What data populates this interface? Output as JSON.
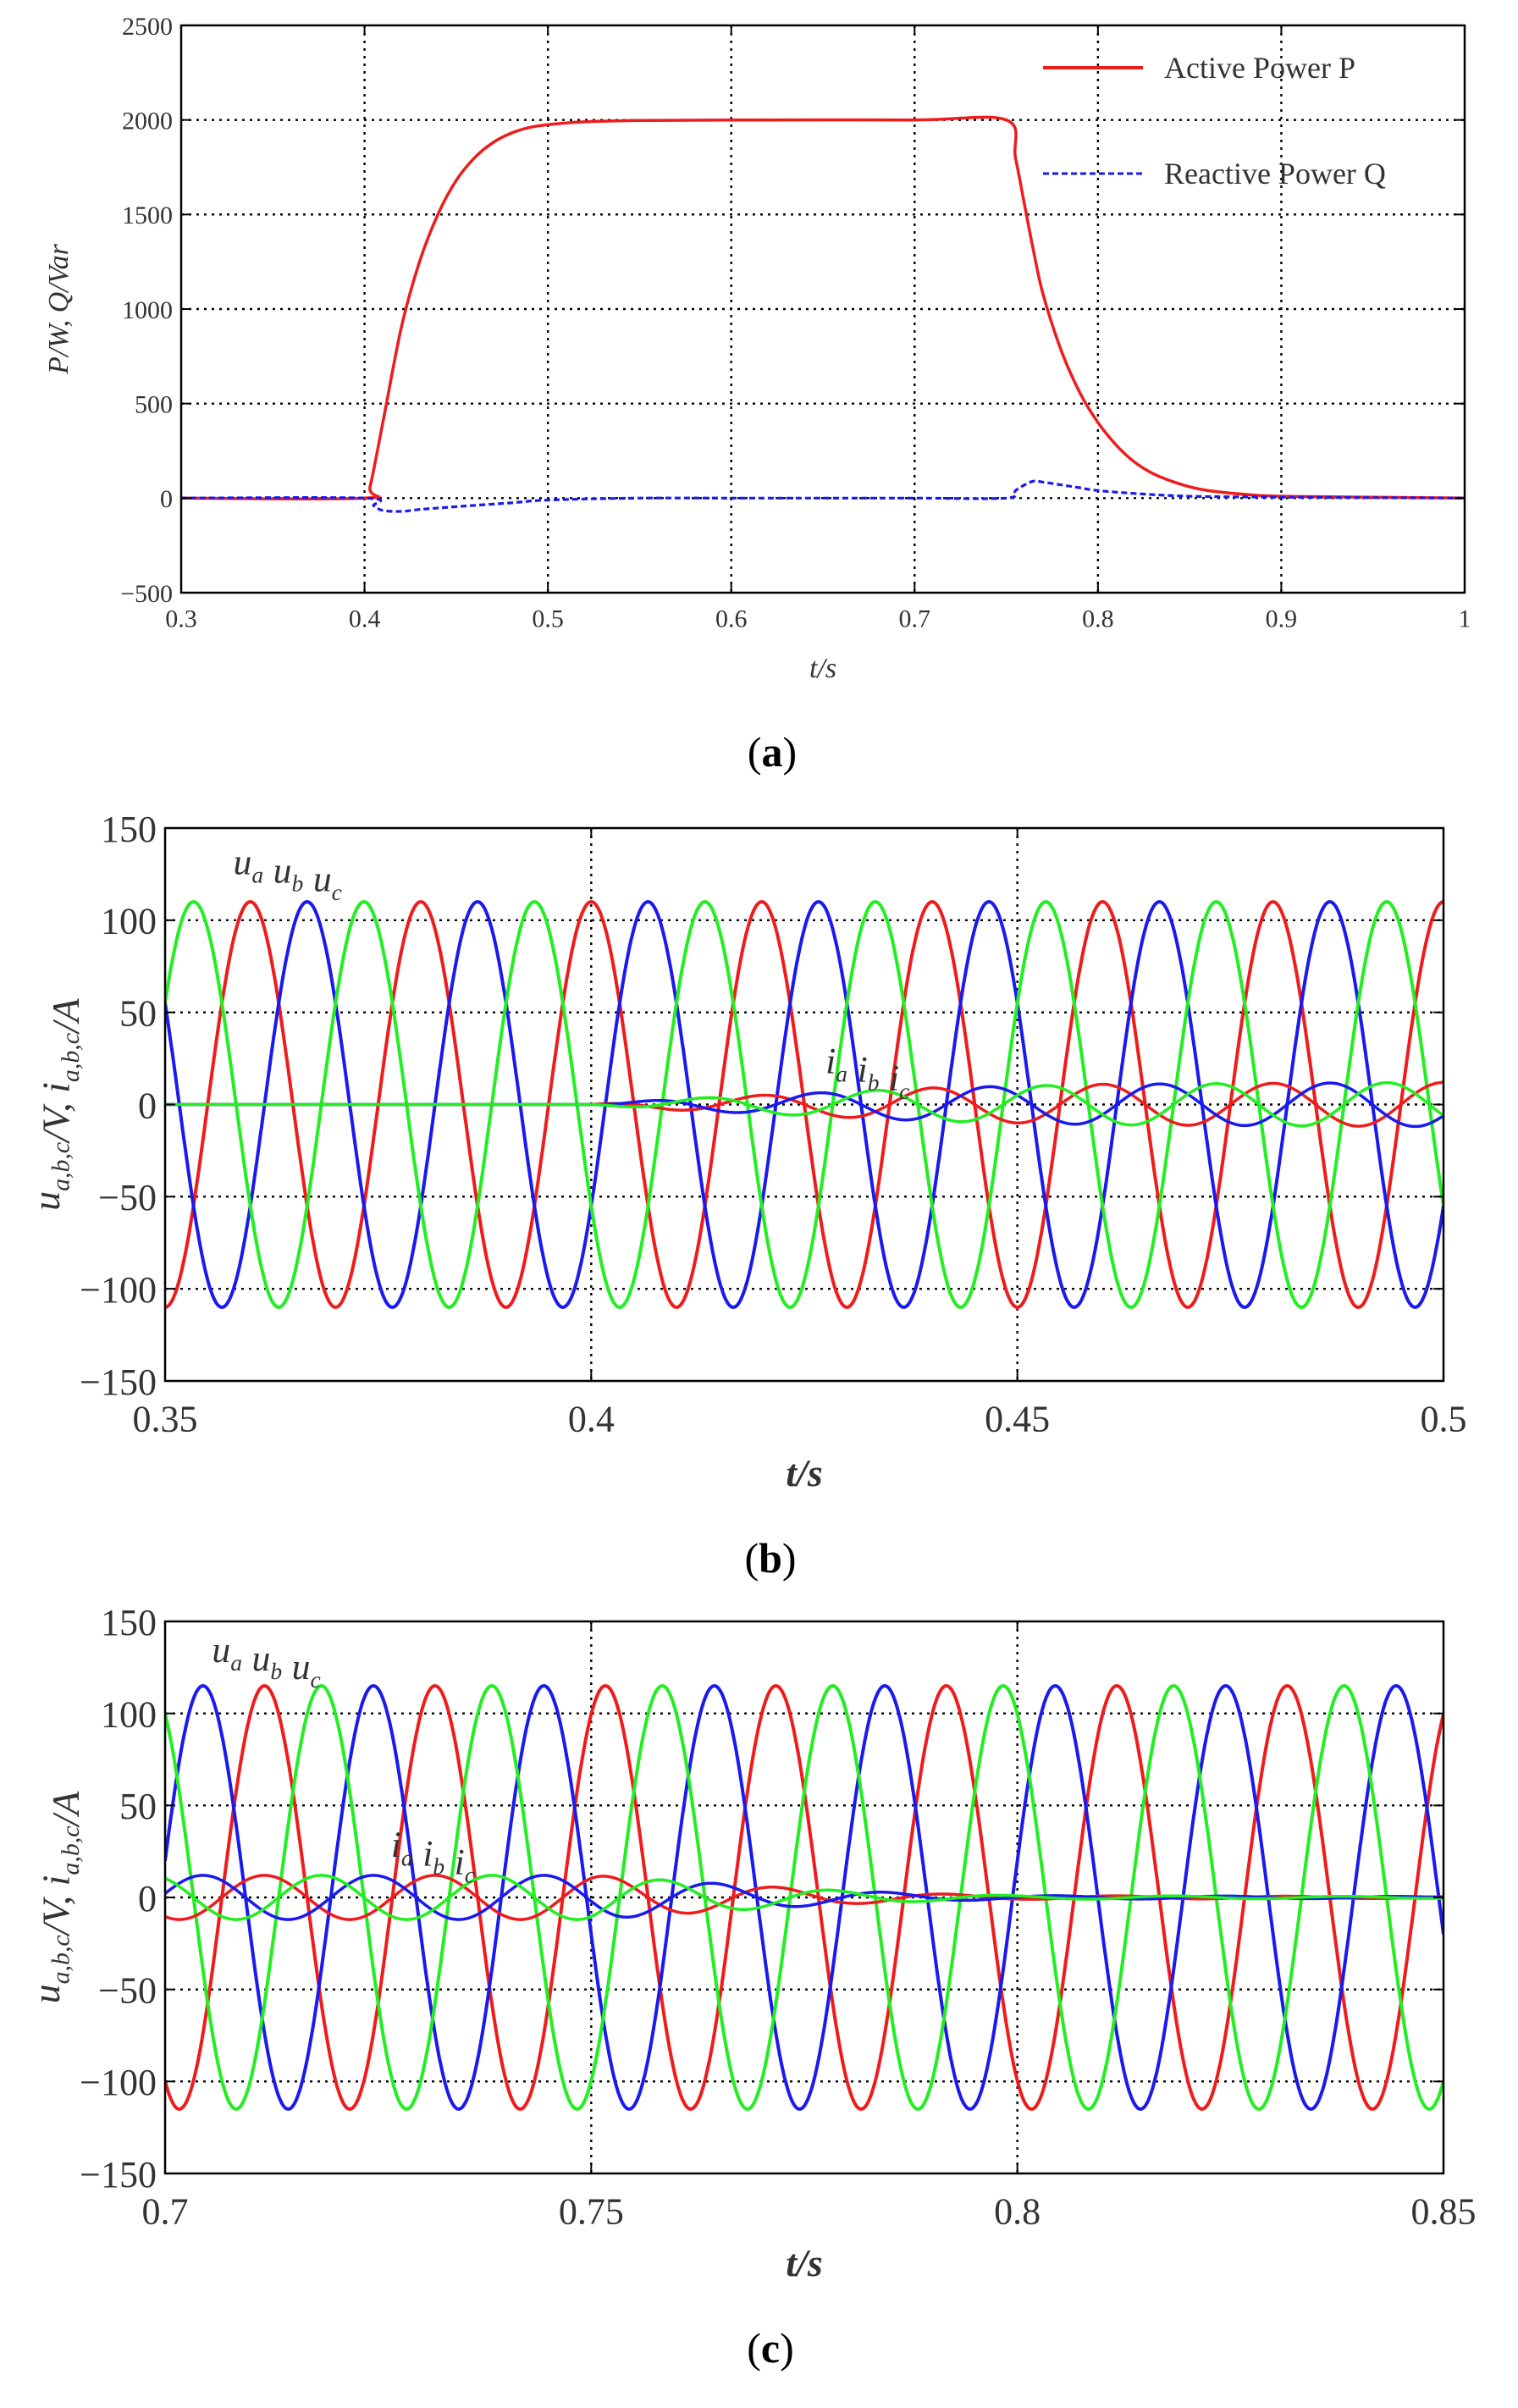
{
  "chart_data": [
    {
      "panel": "a",
      "type": "line",
      "caption_letter": "a",
      "xlabel": "t/s",
      "ylabel": "P/W,  Q/Var",
      "xlim": [
        0.3,
        1.0
      ],
      "ylim": [
        -500,
        2500
      ],
      "xticks": [
        0.3,
        0.4,
        0.5,
        0.6,
        0.7,
        0.8,
        0.9,
        1.0
      ],
      "xtick_labels": [
        "0.3",
        "0.4",
        "0.5",
        "0.6",
        "0.7",
        "0.8",
        "0.9",
        "1"
      ],
      "yticks": [
        -500,
        0,
        500,
        1000,
        1500,
        2000,
        2500
      ],
      "ytick_labels": [
        "−500",
        "0",
        "500",
        "1000",
        "1500",
        "2000",
        "2500"
      ],
      "grid": true,
      "legend_position": "top-right",
      "series": [
        {
          "name": "Active Power P",
          "color": "#ee1c1c",
          "style": "solid",
          "x": [
            0.3,
            0.4,
            0.403,
            0.41,
            0.42,
            0.43,
            0.44,
            0.45,
            0.46,
            0.47,
            0.48,
            0.49,
            0.5,
            0.52,
            0.55,
            0.6,
            0.7,
            0.75,
            0.755,
            0.76,
            0.765,
            0.77,
            0.78,
            0.79,
            0.8,
            0.81,
            0.82,
            0.83,
            0.84,
            0.85,
            0.86,
            0.88,
            0.9,
            0.95,
            1.0
          ],
          "y": [
            0,
            0,
            60,
            400,
            900,
            1250,
            1500,
            1680,
            1800,
            1880,
            1930,
            1960,
            1975,
            1990,
            1997,
            2000,
            2000,
            2000,
            1800,
            1550,
            1300,
            1080,
            780,
            560,
            400,
            280,
            190,
            130,
            90,
            60,
            40,
            20,
            10,
            5,
            0
          ]
        },
        {
          "name": "Reactive Power Q",
          "color": "#1a1aee",
          "style": "dashed",
          "x": [
            0.3,
            0.4,
            0.405,
            0.41,
            0.42,
            0.43,
            0.45,
            0.48,
            0.5,
            0.55,
            0.6,
            0.65,
            0.7,
            0.75,
            0.755,
            0.76,
            0.765,
            0.77,
            0.78,
            0.79,
            0.8,
            0.82,
            0.85,
            0.9,
            1.0
          ],
          "y": [
            0,
            0,
            -40,
            -65,
            -70,
            -60,
            -45,
            -25,
            -10,
            0,
            0,
            0,
            0,
            0,
            40,
            70,
            90,
            85,
            70,
            55,
            40,
            25,
            10,
            5,
            0
          ]
        }
      ]
    },
    {
      "panel": "b",
      "type": "line",
      "caption_letter": "b",
      "xlabel": "t/s",
      "ylabel": "u_{a,b,c}/V,  i_{a,b,c}/A",
      "xlim": [
        0.35,
        0.5
      ],
      "ylim": [
        -150,
        150
      ],
      "xticks": [
        0.35,
        0.4,
        0.45,
        0.5
      ],
      "xtick_labels": [
        "0.35",
        "0.4",
        "0.45",
        "0.5"
      ],
      "yticks": [
        -150,
        -100,
        -50,
        0,
        50,
        100,
        150
      ],
      "ytick_labels": [
        "−150",
        "−100",
        "−50",
        "0",
        "50",
        "100",
        "150"
      ],
      "grid": true,
      "annotations": [
        {
          "kind": "voltage",
          "text": [
            "u",
            "a",
            "u",
            "b",
            "u",
            "c"
          ],
          "x": 0.358,
          "y": 125
        },
        {
          "kind": "current",
          "text": [
            "i",
            "a",
            "i",
            "b",
            "i",
            "c"
          ],
          "x": 0.4275,
          "y": 17
        }
      ],
      "series": [
        {
          "name": "ua",
          "color": "#ee1c1c",
          "amplitude": 110,
          "frequency_hz": 50,
          "phase_deg": 90
        },
        {
          "name": "ub",
          "color": "#1a1aee",
          "amplitude": 110,
          "frequency_hz": 50,
          "phase_deg": -30
        },
        {
          "name": "uc",
          "color": "#22ee22",
          "amplitude": 110,
          "frequency_hz": 50,
          "phase_deg": 210
        },
        {
          "name": "ia",
          "color": "#ee1c1c",
          "envelope_t": [
            0.35,
            0.4,
            0.41,
            0.42,
            0.43,
            0.44,
            0.45,
            0.46,
            0.5
          ],
          "envelope_a": [
            0,
            0,
            3,
            5,
            7,
            9,
            10,
            11,
            12
          ],
          "frequency_hz": 50,
          "phase_deg": 90
        },
        {
          "name": "ib",
          "color": "#1a1aee",
          "envelope_t": [
            0.35,
            0.4,
            0.41,
            0.42,
            0.43,
            0.44,
            0.45,
            0.46,
            0.5
          ],
          "envelope_a": [
            0,
            0,
            3,
            5,
            7,
            9,
            10,
            11,
            12
          ],
          "frequency_hz": 50,
          "phase_deg": -30
        },
        {
          "name": "ic",
          "color": "#22ee22",
          "envelope_t": [
            0.35,
            0.4,
            0.41,
            0.42,
            0.43,
            0.44,
            0.45,
            0.46,
            0.5
          ],
          "envelope_a": [
            0,
            0,
            3,
            5,
            7,
            9,
            10,
            11,
            12
          ],
          "frequency_hz": 50,
          "phase_deg": 210
        }
      ]
    },
    {
      "panel": "c",
      "type": "line",
      "caption_letter": "c",
      "xlabel": "t/s",
      "ylabel": "u_{a,b,c}/V,  i_{a,b,c}/A",
      "xlim": [
        0.7,
        0.85
      ],
      "ylim": [
        -150,
        150
      ],
      "xticks": [
        0.7,
        0.75,
        0.8,
        0.85
      ],
      "xtick_labels": [
        "0.7",
        "0.75",
        "0.8",
        "0.85"
      ],
      "yticks": [
        -150,
        -100,
        -50,
        0,
        50,
        100,
        150
      ],
      "ytick_labels": [
        "−150",
        "−100",
        "−50",
        "0",
        "50",
        "100",
        "150"
      ],
      "grid": true,
      "annotations": [
        {
          "kind": "voltage",
          "text": [
            "u",
            "a",
            "u",
            "b",
            "u",
            "c"
          ],
          "x": 0.7055,
          "y": 128
        },
        {
          "kind": "current",
          "text": [
            "i",
            "a",
            "i",
            "b",
            "i",
            "c"
          ],
          "x": 0.7265,
          "y": 22
        }
      ],
      "series": [
        {
          "name": "ua",
          "color": "#ee1c1c",
          "amplitude": 115,
          "frequency_hz": 50,
          "phase_deg": -120
        },
        {
          "name": "ub",
          "color": "#1a1aee",
          "amplitude": 115,
          "frequency_hz": 50,
          "phase_deg": 10
        },
        {
          "name": "uc",
          "color": "#22ee22",
          "amplitude": 115,
          "frequency_hz": 50,
          "phase_deg": 120
        },
        {
          "name": "ia",
          "color": "#ee1c1c",
          "envelope_t": [
            0.7,
            0.75,
            0.76,
            0.77,
            0.78,
            0.79,
            0.8,
            0.85
          ],
          "envelope_a": [
            12,
            12,
            9,
            6,
            3.5,
            2,
            1,
            0.5
          ],
          "frequency_hz": 50,
          "phase_deg": -120
        },
        {
          "name": "ib",
          "color": "#1a1aee",
          "envelope_t": [
            0.7,
            0.75,
            0.76,
            0.77,
            0.78,
            0.79,
            0.8,
            0.85
          ],
          "envelope_a": [
            12,
            12,
            9,
            6,
            3.5,
            2,
            1,
            0.5
          ],
          "frequency_hz": 50,
          "phase_deg": 10
        },
        {
          "name": "ic",
          "color": "#22ee22",
          "envelope_t": [
            0.7,
            0.75,
            0.76,
            0.77,
            0.78,
            0.79,
            0.8,
            0.85
          ],
          "envelope_a": [
            12,
            12,
            9,
            6,
            3.5,
            2,
            1,
            0.5
          ],
          "frequency_hz": 50,
          "phase_deg": 120
        }
      ]
    }
  ]
}
